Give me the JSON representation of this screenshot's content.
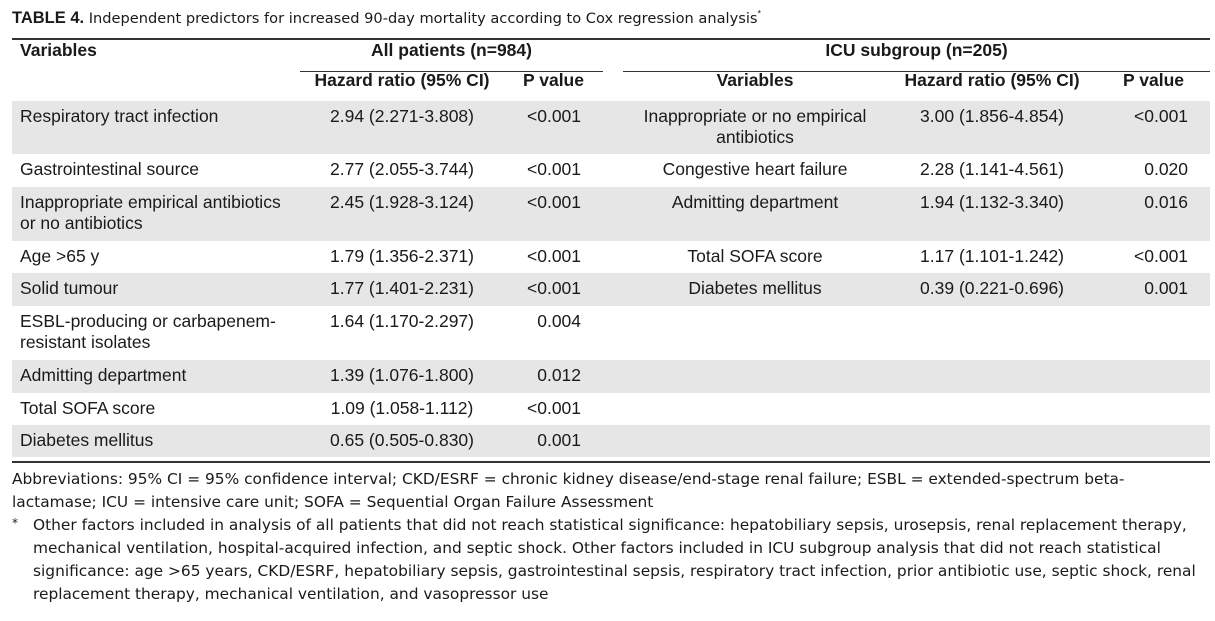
{
  "caption": {
    "label": "TABLE 4.",
    "text": "Independent predictors for increased 90-day mortality according to Cox regression analysis",
    "marker": "*"
  },
  "header": {
    "variables": "Variables",
    "all_patients": "All patients (n=984)",
    "icu_subgroup": "ICU subgroup (n=205)",
    "hazard_ratio": "Hazard ratio (95% CI)",
    "p_value": "P value",
    "icu_variables": "Variables"
  },
  "rows": [
    {
      "var": "Respiratory tract infection",
      "hr": "2.94 (2.271-3.808)",
      "p": "<0.001",
      "icu_var": "Inappropriate or no empirical antibiotics",
      "icu_hr": "3.00 (1.856-4.854)",
      "icu_p": "<0.001"
    },
    {
      "var": "Gastrointestinal source",
      "hr": "2.77 (2.055-3.744)",
      "p": "<0.001",
      "icu_var": "Congestive heart failure",
      "icu_hr": "2.28 (1.141-4.561)",
      "icu_p": "0.020"
    },
    {
      "var": "Inappropriate empirical antibiotics or no antibiotics",
      "hr": "2.45 (1.928-3.124)",
      "p": "<0.001",
      "icu_var": "Admitting department",
      "icu_hr": "1.94 (1.132-3.340)",
      "icu_p": "0.016"
    },
    {
      "var": "Age >65 y",
      "hr": "1.79 (1.356-2.371)",
      "p": "<0.001",
      "icu_var": "Total SOFA score",
      "icu_hr": "1.17 (1.101-1.242)",
      "icu_p": "<0.001"
    },
    {
      "var": "Solid tumour",
      "hr": "1.77 (1.401-2.231)",
      "p": "<0.001",
      "icu_var": "Diabetes mellitus",
      "icu_hr": "0.39 (0.221-0.696)",
      "icu_p": "0.001"
    },
    {
      "var": "ESBL-producing or carbapenem-resistant isolates",
      "hr": "1.64 (1.170-2.297)",
      "p": "0.004",
      "icu_var": "",
      "icu_hr": "",
      "icu_p": ""
    },
    {
      "var": "Admitting department",
      "hr": "1.39 (1.076-1.800)",
      "p": "0.012",
      "icu_var": "",
      "icu_hr": "",
      "icu_p": ""
    },
    {
      "var": "Total SOFA score",
      "hr": "1.09 (1.058-1.112)",
      "p": "<0.001",
      "icu_var": "",
      "icu_hr": "",
      "icu_p": ""
    },
    {
      "var": "Diabetes mellitus",
      "hr": "0.65 (0.505-0.830)",
      "p": "0.001",
      "icu_var": "",
      "icu_hr": "",
      "icu_p": ""
    }
  ],
  "notes": {
    "abbreviations": "Abbreviations: 95% CI = 95% confidence interval; CKD/ESRF = chronic kidney disease/end-stage renal failure; ESBL = extended-spectrum beta-lactamase; ICU = intensive care unit; SOFA = Sequential Organ Failure Assessment",
    "footnote_marker": "*",
    "footnote": "Other factors included in analysis of all patients that did not reach statistical significance: hepatobiliary sepsis, urosepsis, renal replacement therapy, mechanical ventilation, hospital-acquired infection, and septic shock. Other factors included in ICU subgroup analysis that did not reach statistical significance: age >65 years, CKD/ESRF, hepatobiliary sepsis, gastrointestinal sepsis, respiratory tract infection, prior antibiotic use, septic shock, renal replacement therapy, mechanical ventilation, and vasopressor use"
  }
}
